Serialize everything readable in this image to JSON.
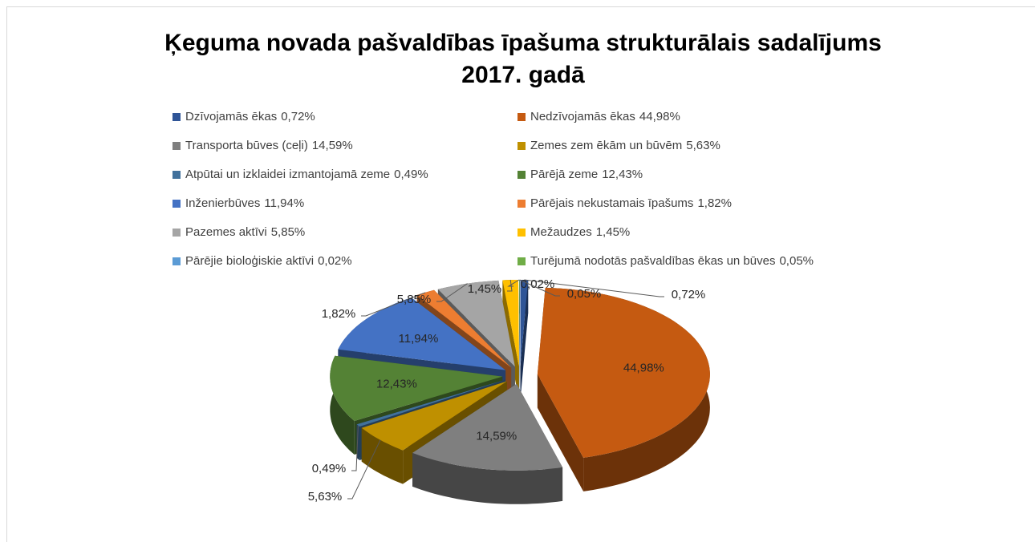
{
  "chart_data": {
    "type": "pie3d",
    "title": [
      "Ķeguma novada pašvaldības īpašuma strukturālais sadalījums",
      "2017. gadā"
    ],
    "categories": [
      "Dzīvojamās ēkas",
      "Nedzīvojamās ēkas",
      "Transporta būves (ceļi)",
      "Zemes zem ēkām un būvēm",
      "Atpūtai un izklaidei izmantojamā zeme",
      "Pārējā zeme",
      "Inženierbūves",
      "Pārējais nekustamais īpašums",
      "Pazemes aktīvi",
      "Mežaudzes",
      "Pārējie bioloģiskie aktīvi",
      "Turējumā nodotās pašvaldības ēkas un būves"
    ],
    "values": [
      0.72,
      44.98,
      14.59,
      5.63,
      0.49,
      12.43,
      11.94,
      1.82,
      5.85,
      1.45,
      0.02,
      0.05
    ],
    "value_labels": [
      "0,72%",
      "44,98%",
      "14,59%",
      "5,63%",
      "0,49%",
      "12,43%",
      "11,94%",
      "1,82%",
      "5,85%",
      "1,45%",
      "0,02%",
      "0,05%"
    ],
    "colors": [
      "#2f5597",
      "#c55a11",
      "#7f7f7f",
      "#bf9000",
      "#41719c",
      "#548235",
      "#4472c4",
      "#ed7d31",
      "#a5a5a5",
      "#ffc000",
      "#5b9bd5",
      "#70ad47"
    ],
    "legend": "top"
  }
}
